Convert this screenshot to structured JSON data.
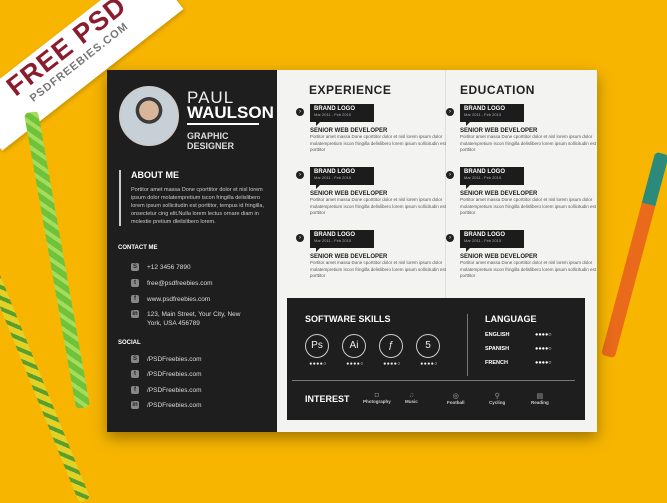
{
  "banner": {
    "title": "FREE PSD",
    "site": "PSDFREEBIES.COM"
  },
  "resume": {
    "first_name": "PAUL",
    "last_name": "WAULSON",
    "job_title": "GRAPHIC DESIGNER",
    "about": {
      "heading": "ABOUT ME",
      "text": "Portitor amet massa Done cporttitor dolor et nisl lorem ipsum dolor molatempretium iscon fringilla delislibero lorem ipsum sollicitudin est porttitor, tempus id fringilla, onsectetur cing elit.Nulla lorem lectus ornare diam in molestie pretium dleilslibero lorem."
    },
    "contact": {
      "heading": "CONTACT ME",
      "items": [
        {
          "icon": "skype-icon",
          "text": "+12 3456 7890"
        },
        {
          "icon": "twitter-icon",
          "text": "free@psdfreebies.com"
        },
        {
          "icon": "facebook-icon",
          "text": "www.psdfreebies.com"
        },
        {
          "icon": "linkedin-icon",
          "text": "123, Main Street, Your City, New York, USA 456789"
        }
      ]
    },
    "social": {
      "heading": "SOCIAL",
      "items": [
        {
          "icon": "skype-icon",
          "text": "/PSDFreebies.com"
        },
        {
          "icon": "twitter-icon",
          "text": "/PSDFreebies.com"
        },
        {
          "icon": "facebook-icon",
          "text": "/PSDFreebies.com"
        },
        {
          "icon": "linkedin-icon",
          "text": "/PSDFreebies.com"
        }
      ]
    },
    "experience": {
      "heading": "EXPERIENCE",
      "items": [
        {
          "brand": "BRAND LOGO",
          "dates": "Mar 2011 - Feb 2015",
          "role": "SENIOR WEB DEVELOPER",
          "text": "Portitor amet massa Done cporttitor dolor et nisl lorem ipsum dolor molatempretium iscon fringilla delislibero lorem ipsum sollicitudin est porttitor"
        },
        {
          "brand": "BRAND LOGO",
          "dates": "Mar 2011 - Feb 2015",
          "role": "SENIOR WEB DEVELOPER",
          "text": "Portitor amet massa Done cporttitor dolor et nisl lorem ipsum dolor molatempretium iscon fringilla delislibero lorem ipsum sollicitudin est porttitor"
        },
        {
          "brand": "BRAND LOGO",
          "dates": "Mar 2011 - Feb 2015",
          "role": "SENIOR WEB DEVELOPER",
          "text": "Portitor amet massa Done cporttitor dolor et nisl lorem ipsum dolor molatempretium iscon fringilla delislibero lorem ipsum sollicitudin est porttitor"
        }
      ]
    },
    "education": {
      "heading": "EDUCATION",
      "items": [
        {
          "brand": "BRAND LOGO",
          "dates": "Mar 2011 - Feb 2015",
          "role": "SENIOR WEB DEVELOPER",
          "text": "Portitor amet massa Done cporttitor dolor et nisl lorem ipsum dolor molatempretium iscon fringilla delislibero lorem ipsum sollicitudin est porttitor"
        },
        {
          "brand": "BRAND LOGO",
          "dates": "Mar 2011 - Feb 2015",
          "role": "SENIOR WEB DEVELOPER",
          "text": "Portitor amet massa Done cporttitor dolor et nisl lorem ipsum dolor molatempretium iscon fringilla delislibero lorem ipsum sollicitudin est porttitor"
        },
        {
          "brand": "BRAND LOGO",
          "dates": "Mar 2011 - Feb 2015",
          "role": "SENIOR WEB DEVELOPER",
          "text": "Portitor amet massa Done cporttitor dolor et nisl lorem ipsum dolor molatempretium iscon fringilla delislibero lorem ipsum sollicitudin est porttitor"
        }
      ]
    },
    "skills": {
      "heading": "SOFTWARE SKILLS",
      "items": [
        {
          "label": "Ps",
          "icon": "photoshop-icon",
          "rating": 4,
          "max": 5
        },
        {
          "label": "Ai",
          "icon": "illustrator-icon",
          "rating": 4,
          "max": 5
        },
        {
          "label": "ƒ",
          "icon": "flash-icon",
          "rating": 4,
          "max": 5
        },
        {
          "label": "5",
          "icon": "html5-icon",
          "rating": 4,
          "max": 5
        }
      ]
    },
    "language": {
      "heading": "LANGUAGE",
      "items": [
        {
          "name": "ENGLISH",
          "rating": 4,
          "max": 5
        },
        {
          "name": "SPANISH",
          "rating": 4,
          "max": 5
        },
        {
          "name": "FRENCH",
          "rating": 4,
          "max": 5
        }
      ]
    },
    "interest": {
      "heading": "INTEREST",
      "items": [
        {
          "label": "Photography",
          "icon": "camera-icon"
        },
        {
          "label": "Music",
          "icon": "music-icon"
        },
        {
          "label": "Football",
          "icon": "football-icon"
        },
        {
          "label": "Cycling",
          "icon": "bicycle-icon"
        },
        {
          "label": "Reading",
          "icon": "book-icon"
        }
      ]
    }
  },
  "colors": {
    "background": "#f7b500",
    "panel": "#1e1e1e",
    "paper": "#f3f3f1",
    "banner_text": "#8b1c2e"
  }
}
